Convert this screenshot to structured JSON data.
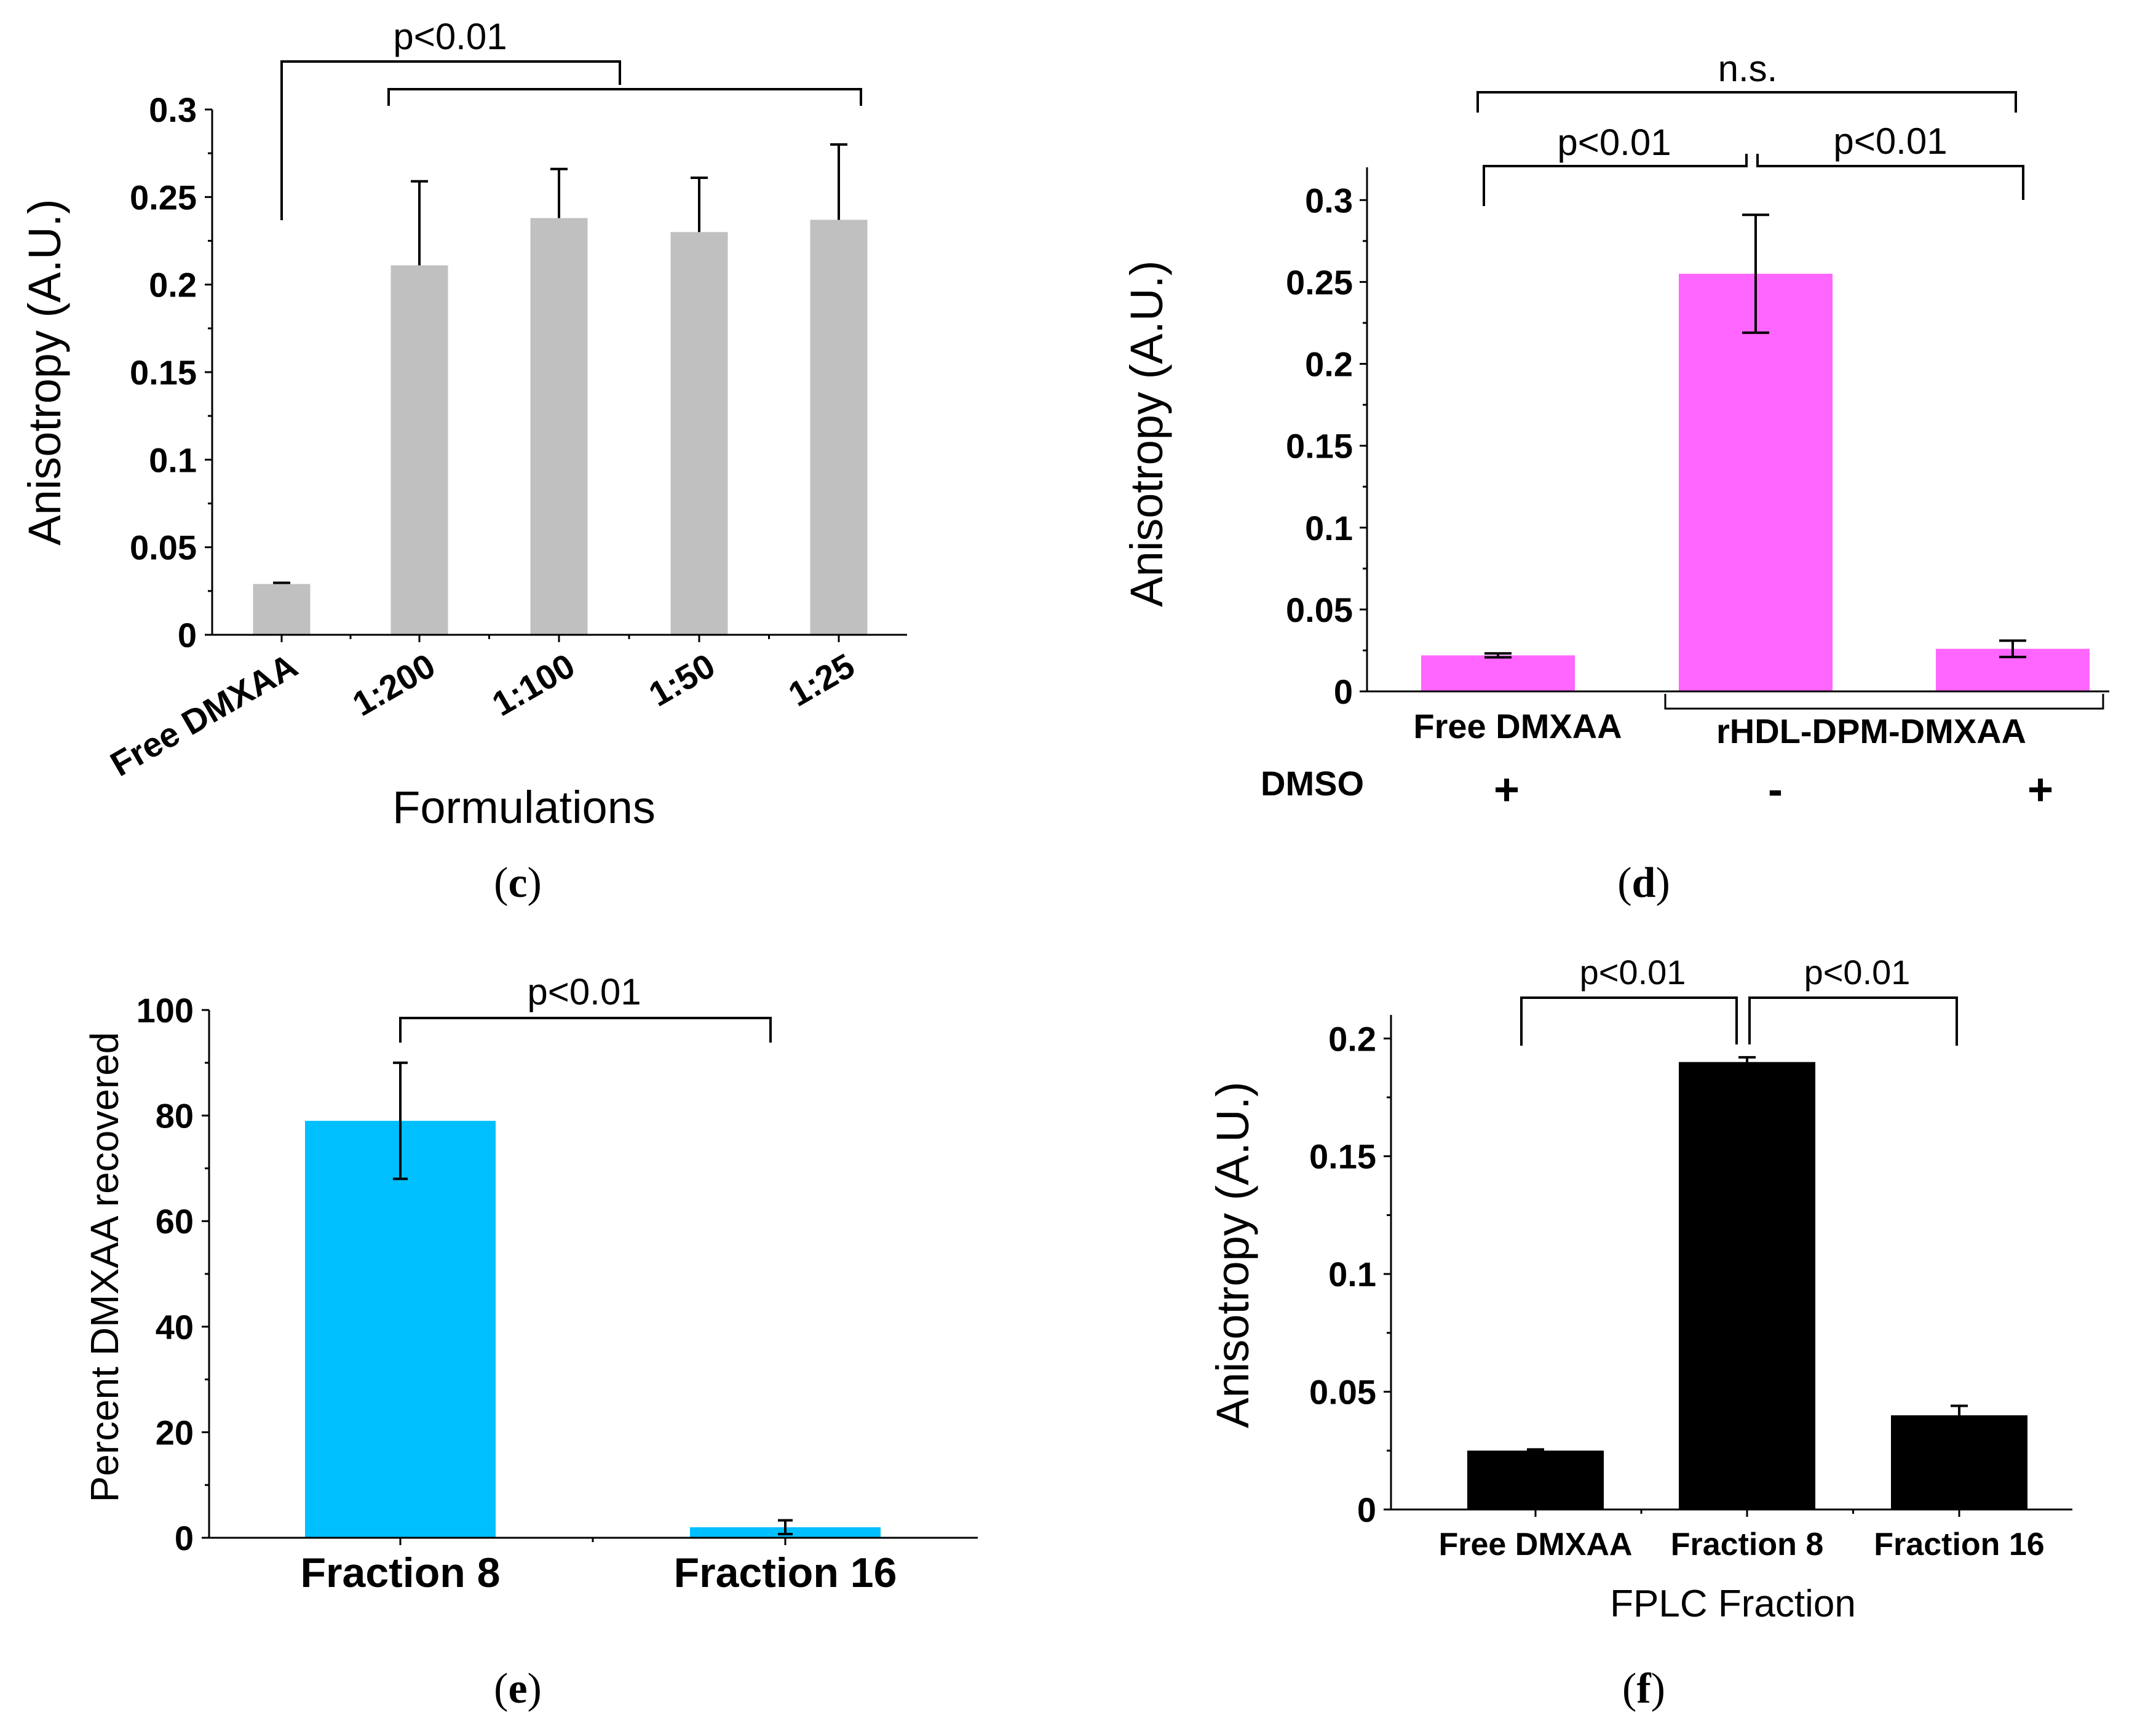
{
  "chart_data": [
    {
      "id": "c",
      "type": "bar",
      "caption": "c",
      "ylabel": "Anisotropy (A.U.)",
      "xlabel": "Formulations",
      "categories": [
        "Free DMXAA",
        "1:200",
        "1:100",
        "1:50",
        "1:25"
      ],
      "values": [
        0.029,
        0.211,
        0.238,
        0.23,
        0.237
      ],
      "errors": [
        0.0007,
        0.048,
        0.028,
        0.031,
        0.043
      ],
      "ylim": [
        0,
        0.3
      ],
      "yticks": [
        "0",
        "0.05",
        "0.1",
        "0.15",
        "0.2",
        "0.25",
        "0.3"
      ],
      "bar_color": "#c0c0c0",
      "significance": [
        {
          "label": "p<0.01",
          "from": "Free DMXAA",
          "to": "1:200 to 1:25 group"
        }
      ]
    },
    {
      "id": "d",
      "type": "bar",
      "caption": "d",
      "ylabel": "Anisotropy (A.U.)",
      "categories": [
        "Free DMXAA",
        "rHDL-DPM-DMXAA (DMSO -)",
        "rHDL-DPM-DMXAA (DMSO +)"
      ],
      "values": [
        0.022,
        0.255,
        0.026
      ],
      "errors": [
        0.0012,
        0.036,
        0.005
      ],
      "ylim": [
        0,
        0.32
      ],
      "yticks": [
        "0",
        "0.05",
        "0.1",
        "0.15",
        "0.2",
        "0.25",
        "0.3"
      ],
      "group_labels": [
        "Free DMXAA",
        "rHDL-DPM-DMXAA"
      ],
      "dmso_row_label": "DMSO",
      "dmso_values": [
        "+",
        "-",
        "+"
      ],
      "bar_color": "#ff66ff",
      "significance": [
        {
          "label": "p<0.01",
          "from": "Free DMXAA",
          "to": "rHDL-DPM-DMXAA (DMSO -)"
        },
        {
          "label": "p<0.01",
          "from": "rHDL-DPM-DMXAA (DMSO -)",
          "to": "rHDL-DPM-DMXAA (DMSO +)"
        },
        {
          "label": "n.s.",
          "from": "Free DMXAA",
          "to": "rHDL-DPM-DMXAA (DMSO +)"
        }
      ]
    },
    {
      "id": "e",
      "type": "bar",
      "caption": "e",
      "ylabel": "Percent DMXAA recovered",
      "categories": [
        "Fraction 8",
        "Fraction 16"
      ],
      "values": [
        79,
        2
      ],
      "errors": [
        11,
        1.3
      ],
      "ylim": [
        0,
        100
      ],
      "yticks": [
        "0",
        "20",
        "40",
        "60",
        "80",
        "100"
      ],
      "bar_color": "#00bfff",
      "significance": [
        {
          "label": "p<0.01",
          "from": "Fraction 8",
          "to": "Fraction 16"
        }
      ]
    },
    {
      "id": "f",
      "type": "bar",
      "caption": "f",
      "ylabel": "Anisotropy (A.U.)",
      "xlabel": "FPLC Fraction",
      "categories": [
        "Free DMXAA",
        "Fraction 8",
        "Fraction 16"
      ],
      "values": [
        0.025,
        0.19,
        0.04
      ],
      "errors": [
        0.0005,
        0.002,
        0.004
      ],
      "ylim": [
        0,
        0.21
      ],
      "yticks": [
        "0",
        "0.05",
        "0.1",
        "0.15",
        "0.2"
      ],
      "bar_color": "#000000",
      "significance": [
        {
          "label": "p<0.01",
          "from": "Free DMXAA",
          "to": "Fraction 8"
        },
        {
          "label": "p<0.01",
          "from": "Fraction 8",
          "to": "Fraction 16"
        }
      ]
    }
  ]
}
